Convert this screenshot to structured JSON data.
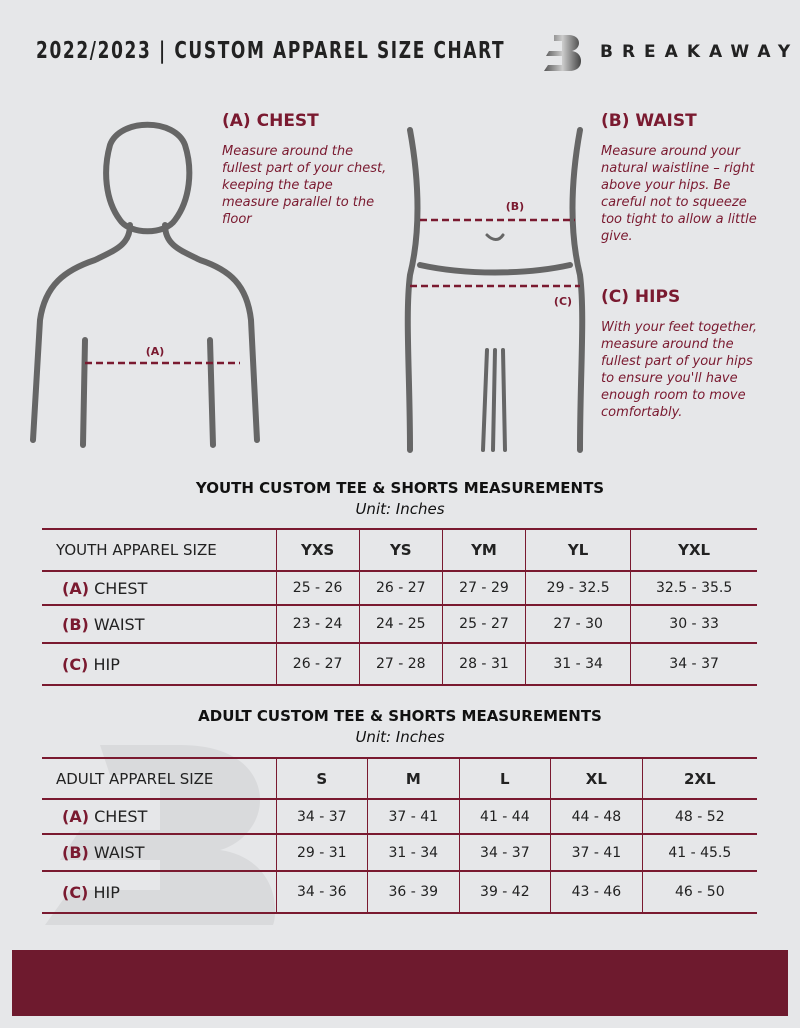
{
  "header": {
    "title": "2022/2023  |  CUSTOM APPAREL SIZE CHART",
    "brand": "BREAKAWAY"
  },
  "measures": {
    "chest": {
      "title": "(A) CHEST",
      "desc": "Measure around the fullest part of your chest, keeping the tape measure parallel to the floor",
      "marker": "(A)"
    },
    "waist": {
      "title": "(B) WAIST",
      "desc": "Measure around your natural waistline – right above your hips. Be careful not to squeeze too tight to allow a little give.",
      "marker": "(B)"
    },
    "hips": {
      "title": "(C) HIPS",
      "desc": "With your feet together, measure around the fullest part of your hips to ensure you'll have enough room to move comfortably.",
      "marker": "(C)"
    }
  },
  "colors": {
    "accent": "#7a1a30",
    "background": "#e6e7e9",
    "footer": "#6e1a2e"
  },
  "youth": {
    "title": "YOUTH CUSTOM TEE & SHORTS MEASUREMENTS",
    "unit": "Unit: Inches",
    "size_label": "YOUTH APPAREL SIZE",
    "sizes": [
      "YXS",
      "YS",
      "YM",
      "YL",
      "YXL"
    ],
    "rows": [
      {
        "code": "(A)",
        "name": "CHEST",
        "values": [
          "25 - 26",
          "26 - 27",
          "27 - 29",
          "29 - 32.5",
          "32.5 - 35.5"
        ]
      },
      {
        "code": "(B)",
        "name": "WAIST",
        "values": [
          "23 - 24",
          "24 - 25",
          "25 - 27",
          "27 - 30",
          "30 - 33"
        ]
      },
      {
        "code": "(C)",
        "name": "HIP",
        "values": [
          "26 - 27",
          "27 - 28",
          "28 - 31",
          "31 - 34",
          "34 - 37"
        ]
      }
    ]
  },
  "adult": {
    "title": "ADULT CUSTOM TEE & SHORTS MEASUREMENTS",
    "unit": "Unit: Inches",
    "size_label": "ADULT APPAREL SIZE",
    "sizes": [
      "S",
      "M",
      "L",
      "XL",
      "2XL"
    ],
    "rows": [
      {
        "code": "(A)",
        "name": "CHEST",
        "values": [
          "34 - 37",
          "37 - 41",
          "41 - 44",
          "44 - 48",
          "48 - 52"
        ]
      },
      {
        "code": "(B)",
        "name": "WAIST",
        "values": [
          "29 - 31",
          "31 - 34",
          "34 - 37",
          "37 - 41",
          "41 - 45.5"
        ]
      },
      {
        "code": "(C)",
        "name": "HIP",
        "values": [
          "34 - 36",
          "36 - 39",
          "39 - 42",
          "43 - 46",
          "46 - 50"
        ]
      }
    ]
  }
}
